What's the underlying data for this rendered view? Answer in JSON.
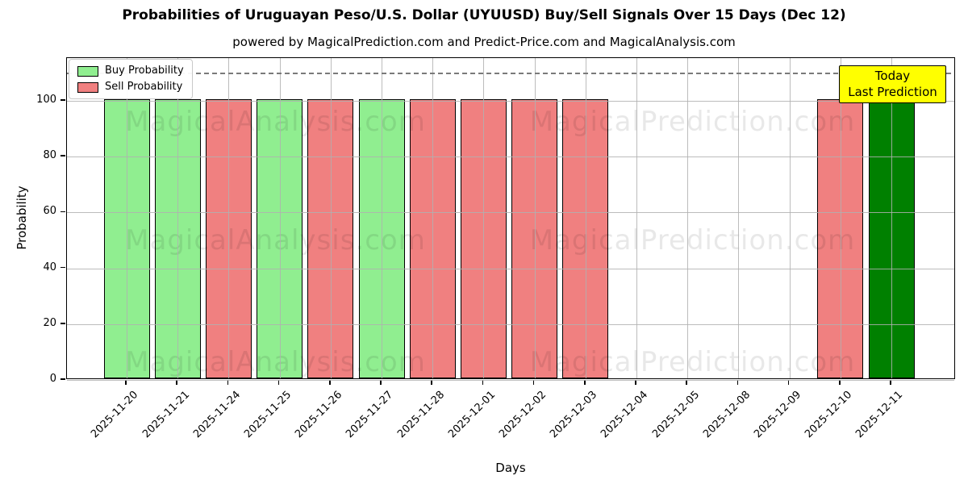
{
  "header": {
    "title": "Probabilities of Uruguayan Peso/U.S. Dollar (UYUUSD) Buy/Sell Signals Over 15 Days (Dec 12)",
    "subtitle": "powered by MagicalPrediction.com and Predict-Price.com and MagicalAnalysis.com"
  },
  "legend": {
    "items": [
      {
        "label": "Buy Probability",
        "color": "#90EE90"
      },
      {
        "label": "Sell Probability",
        "color": "#F08080"
      }
    ]
  },
  "annotation": {
    "line1": "Today",
    "line2": "Last Prediction",
    "bg_color": "#FFFF00",
    "border_color": "#000000"
  },
  "watermarks": {
    "left_text": "MagicalAnalysis.com",
    "right_text": "MagicalPrediction.com"
  },
  "colors": {
    "buy": "#90EE90",
    "sell": "#F08080",
    "last_buy": "#008000",
    "grid": "#B0B0B0",
    "dashed_line": "#7A7A7A",
    "background": "#FFFFFF"
  },
  "chart_data": {
    "type": "bar",
    "title": "Probabilities of Uruguayan Peso/U.S. Dollar (UYUUSD) Buy/Sell Signals Over 15 Days (Dec 12)",
    "subtitle": "powered by MagicalPrediction.com and Predict-Price.com and MagicalAnalysis.com",
    "xlabel": "Days",
    "ylabel": "Probability",
    "ylim": [
      0,
      115
    ],
    "yticks": [
      0,
      20,
      40,
      60,
      80,
      100
    ],
    "grid": true,
    "legend_position": "upper left",
    "dashed_threshold_y": 110,
    "categories": [
      "2025-11-20",
      "2025-11-21",
      "2025-11-24",
      "2025-11-25",
      "2025-11-26",
      "2025-11-27",
      "2025-11-28",
      "2025-12-01",
      "2025-12-02",
      "2025-12-03",
      "2025-12-04",
      "2025-12-05",
      "2025-12-08",
      "2025-12-09",
      "2025-12-10",
      "2025-12-11"
    ],
    "series": [
      {
        "name": "Buy Probability",
        "color": "#90EE90",
        "values": [
          100,
          100,
          0,
          100,
          0,
          100,
          0,
          0,
          0,
          0,
          0,
          0,
          0,
          0,
          0,
          0
        ]
      },
      {
        "name": "Sell Probability",
        "color": "#F08080",
        "values": [
          0,
          0,
          100,
          0,
          100,
          0,
          100,
          100,
          100,
          100,
          0,
          0,
          0,
          0,
          100,
          0
        ]
      },
      {
        "name": "Last Prediction (Buy)",
        "color": "#008000",
        "values": [
          0,
          0,
          0,
          0,
          0,
          0,
          0,
          0,
          0,
          0,
          0,
          0,
          0,
          0,
          0,
          100
        ]
      }
    ],
    "bars": [
      {
        "date": "2025-11-20",
        "signal": "buy",
        "value": 100
      },
      {
        "date": "2025-11-21",
        "signal": "buy",
        "value": 100
      },
      {
        "date": "2025-11-24",
        "signal": "sell",
        "value": 100
      },
      {
        "date": "2025-11-25",
        "signal": "buy",
        "value": 100
      },
      {
        "date": "2025-11-26",
        "signal": "sell",
        "value": 100
      },
      {
        "date": "2025-11-27",
        "signal": "buy",
        "value": 100
      },
      {
        "date": "2025-11-28",
        "signal": "sell",
        "value": 100
      },
      {
        "date": "2025-12-01",
        "signal": "sell",
        "value": 100
      },
      {
        "date": "2025-12-02",
        "signal": "sell",
        "value": 100
      },
      {
        "date": "2025-12-03",
        "signal": "sell",
        "value": 100
      },
      {
        "date": "2025-12-04",
        "signal": "none",
        "value": 0
      },
      {
        "date": "2025-12-05",
        "signal": "none",
        "value": 0
      },
      {
        "date": "2025-12-08",
        "signal": "none",
        "value": 0
      },
      {
        "date": "2025-12-09",
        "signal": "none",
        "value": 0
      },
      {
        "date": "2025-12-10",
        "signal": "sell",
        "value": 100
      },
      {
        "date": "2025-12-11",
        "signal": "last_buy",
        "value": 100
      }
    ]
  }
}
